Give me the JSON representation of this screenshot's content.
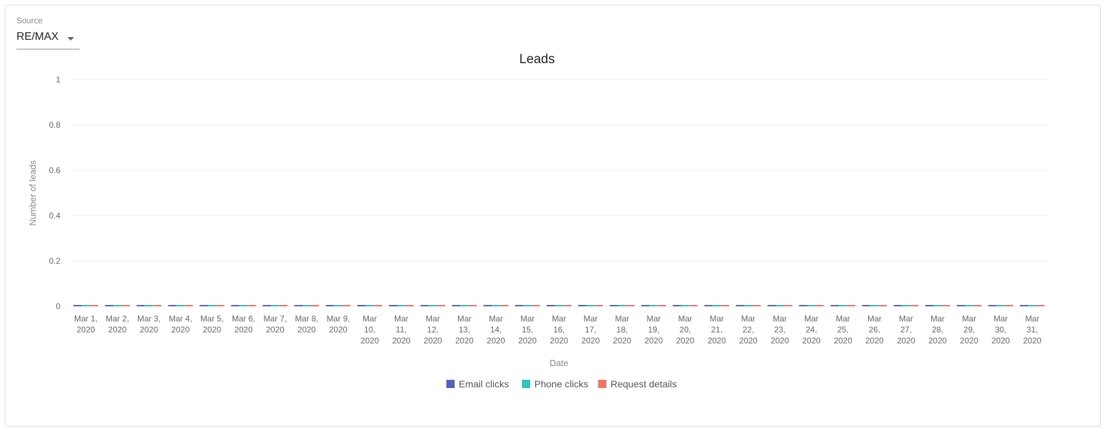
{
  "filter": {
    "label": "Source",
    "selected": "RE/MAX"
  },
  "colors": {
    "email": "#5c5fb8",
    "phone": "#2ec4b6",
    "request": "#f07367",
    "grid": "#efefef"
  },
  "chart_data": {
    "type": "bar",
    "title": "Leads",
    "xlabel": "Date",
    "ylabel": "Number of leads",
    "ylim": [
      0,
      1
    ],
    "yticks": [
      "0",
      "0.2",
      "0.4",
      "0.6",
      "0.8",
      "1"
    ],
    "categories": [
      [
        "Mar 1,",
        "2020"
      ],
      [
        "Mar 2,",
        "2020"
      ],
      [
        "Mar 3,",
        "2020"
      ],
      [
        "Mar 4,",
        "2020"
      ],
      [
        "Mar 5,",
        "2020"
      ],
      [
        "Mar 6,",
        "2020"
      ],
      [
        "Mar 7,",
        "2020"
      ],
      [
        "Mar 8,",
        "2020"
      ],
      [
        "Mar 9,",
        "2020"
      ],
      [
        "Mar",
        "10,",
        "2020"
      ],
      [
        "Mar",
        "11,",
        "2020"
      ],
      [
        "Mar",
        "12,",
        "2020"
      ],
      [
        "Mar",
        "13,",
        "2020"
      ],
      [
        "Mar",
        "14,",
        "2020"
      ],
      [
        "Mar",
        "15,",
        "2020"
      ],
      [
        "Mar",
        "16,",
        "2020"
      ],
      [
        "Mar",
        "17,",
        "2020"
      ],
      [
        "Mar",
        "18,",
        "2020"
      ],
      [
        "Mar",
        "19,",
        "2020"
      ],
      [
        "Mar",
        "20,",
        "2020"
      ],
      [
        "Mar",
        "21,",
        "2020"
      ],
      [
        "Mar",
        "22,",
        "2020"
      ],
      [
        "Mar",
        "23,",
        "2020"
      ],
      [
        "Mar",
        "24,",
        "2020"
      ],
      [
        "Mar",
        "25,",
        "2020"
      ],
      [
        "Mar",
        "26,",
        "2020"
      ],
      [
        "Mar",
        "27,",
        "2020"
      ],
      [
        "Mar",
        "28,",
        "2020"
      ],
      [
        "Mar",
        "29,",
        "2020"
      ],
      [
        "Mar",
        "30,",
        "2020"
      ],
      [
        "Mar",
        "31,",
        "2020"
      ]
    ],
    "series": [
      {
        "name": "Email clicks",
        "color_key": "email",
        "values": [
          0,
          0,
          0,
          0,
          0,
          0,
          0,
          0,
          0,
          0,
          0,
          0,
          0,
          0,
          0,
          0,
          0,
          0,
          0,
          0,
          0,
          0,
          0,
          0,
          0,
          0,
          0,
          0,
          0,
          0,
          0
        ]
      },
      {
        "name": "Phone clicks",
        "color_key": "phone",
        "values": [
          0,
          0,
          0,
          0,
          0,
          0,
          0,
          0,
          0,
          0,
          0,
          0,
          0,
          0,
          0,
          0,
          0,
          0,
          0,
          0,
          0,
          0,
          0,
          0,
          0,
          0,
          0,
          0,
          0,
          0,
          0
        ]
      },
      {
        "name": "Request details",
        "color_key": "request",
        "values": [
          0,
          0,
          0,
          0,
          0,
          0,
          0,
          0,
          0,
          0,
          0,
          0,
          0,
          0,
          0,
          0,
          0,
          0,
          0,
          0,
          0,
          0,
          0,
          0,
          0,
          0,
          0,
          0,
          0,
          0,
          0
        ]
      }
    ],
    "legend_position": "bottom"
  }
}
